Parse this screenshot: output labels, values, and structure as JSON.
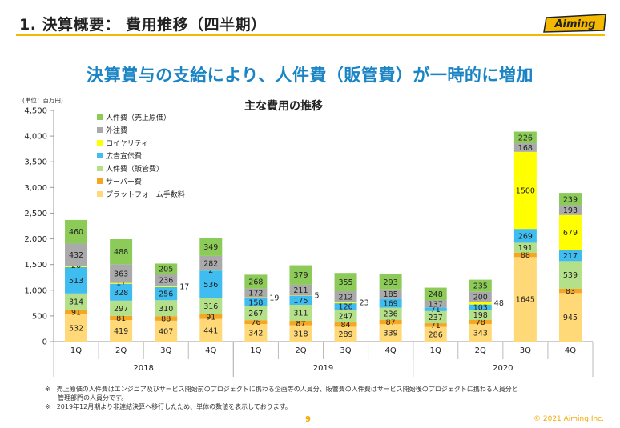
{
  "header": {
    "title": "1. 決算概要： 費用推移（四半期）",
    "logo_text": "Aiming"
  },
  "subtitle": "決算賞与の支給により、人件費（販管費）が一時的に増加",
  "chart_data": {
    "type": "bar",
    "stacked": true,
    "title": "主な費用の推移",
    "unit_label": "(単位：百万円)",
    "ylim": [
      0,
      4500
    ],
    "yticks": [
      0,
      500,
      1000,
      1500,
      2000,
      2500,
      3000,
      3500,
      4000,
      4500
    ],
    "ytick_labels": [
      "0",
      "500",
      "1,000",
      "1,500",
      "2,000",
      "2,500",
      "3,000",
      "3,500",
      "4,000",
      "4,500"
    ],
    "categories": [
      "1Q",
      "2Q",
      "3Q",
      "4Q",
      "1Q",
      "2Q",
      "3Q",
      "4Q",
      "1Q",
      "2Q",
      "3Q",
      "4Q"
    ],
    "year_groups": [
      {
        "label": "2018",
        "start": 0,
        "end": 3
      },
      {
        "label": "2019",
        "start": 4,
        "end": 7
      },
      {
        "label": "2020",
        "start": 8,
        "end": 11
      }
    ],
    "legend_placement": "top-left",
    "series": [
      {
        "name": "プラットフォーム手数料",
        "color": "#ffd878",
        "values": [
          532,
          419,
          407,
          441,
          342,
          318,
          289,
          339,
          286,
          343,
          1645,
          945
        ]
      },
      {
        "name": "サーバー費",
        "color": "#f5a623",
        "values": [
          91,
          81,
          88,
          91,
          76,
          87,
          84,
          87,
          71,
          78,
          88,
          83
        ]
      },
      {
        "name": "人件費（販管費）",
        "color": "#b5e08a",
        "values": [
          314,
          297,
          310,
          316,
          267,
          311,
          247,
          236,
          237,
          198,
          191,
          539
        ]
      },
      {
        "name": "広告宣伝費",
        "color": "#3fbcf0",
        "values": [
          513,
          328,
          256,
          536,
          158,
          175,
          126,
          169,
          71,
          103,
          269,
          217
        ]
      },
      {
        "name": "ロイヤリティ",
        "color": "#ffff00",
        "values": [
          26,
          17,
          17,
          2,
          19,
          5,
          23,
          0,
          0,
          48,
          1500,
          679
        ]
      },
      {
        "name": "外注費",
        "color": "#aaaaaa",
        "values": [
          432,
          363,
          236,
          282,
          172,
          211,
          212,
          185,
          137,
          200,
          168,
          193
        ]
      },
      {
        "name": "人件費（売上原価）",
        "color": "#8ccb58",
        "values": [
          460,
          488,
          205,
          349,
          268,
          379,
          355,
          293,
          248,
          235,
          226,
          239
        ]
      }
    ],
    "legend_order": [
      6,
      5,
      4,
      3,
      2,
      1,
      0
    ]
  },
  "notes": [
    "※　売上原価の人件費はエンジニア及びサービス開始前のプロジェクトに携わる企画等の人員分、販管費の人件費はサービス開始後のプロジェクトに携わる人員分と",
    "　　管理部門の人員分です。",
    "※　2019年12月期より非連結決算へ移行したため、単体の数値を表示しております。"
  ],
  "footer": {
    "page": "9",
    "copyright": "© 2021 Aiming Inc."
  }
}
